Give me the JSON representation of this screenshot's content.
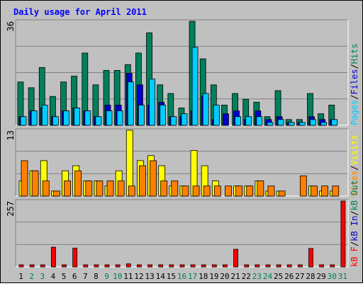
{
  "chart_data": {
    "title": "Daily usage for April 2011",
    "type": "bar",
    "days": [
      "1",
      "2",
      "3",
      "4",
      "5",
      "6",
      "7",
      "8",
      "9",
      "10",
      "11",
      "12",
      "13",
      "14",
      "15",
      "16",
      "17",
      "18",
      "19",
      "20",
      "21",
      "22",
      "23",
      "24",
      "25",
      "26",
      "27",
      "28",
      "29",
      "30",
      "31"
    ],
    "weekend_days": [
      "2",
      "3",
      "9",
      "10",
      "16",
      "17",
      "23",
      "24",
      "30",
      "31"
    ],
    "panels": [
      {
        "id": "hits",
        "max_label": "36",
        "ylim": [
          0,
          36
        ],
        "legend": [
          {
            "text": "Pages",
            "color": "#00ccff"
          },
          {
            "text": "/",
            "color": "#000000"
          },
          {
            "text": "Files",
            "color": "#0000cc"
          },
          {
            "text": "/",
            "color": "#000000"
          },
          {
            "text": "Hits",
            "color": "#00805c"
          }
        ],
        "series": [
          {
            "name": "Hits",
            "color": "#00805c",
            "values": [
              15,
              13,
              20,
              10,
              15,
              17,
              25,
              14,
              19,
              19,
              21,
              25,
              32,
              14,
              11,
              6,
              36,
              23,
              14,
              7,
              11,
              9,
              8,
              3,
              12,
              2,
              2,
              11,
              4,
              7,
              0
            ]
          },
          {
            "name": "Files",
            "color": "#0000cc",
            "values": [
              3,
              5,
              6,
              3,
              5,
              6,
              5,
              3,
              7,
              7,
              18,
              14,
              7,
              8,
              3,
              3,
              5,
              10,
              2,
              4,
              5,
              2,
              5,
              2,
              3,
              1,
              1,
              3,
              2,
              2,
              0
            ]
          },
          {
            "name": "Pages",
            "color": "#00ccff",
            "values": [
              3,
              5,
              7,
              3,
              5,
              6,
              5,
              3,
              5,
              5,
              15,
              7,
              16,
              7,
              3,
              4,
              27,
              11,
              7,
              0,
              3,
              3,
              3,
              1,
              2,
              1,
              1,
              2,
              1,
              2,
              0
            ]
          }
        ]
      },
      {
        "id": "visits",
        "max_label": "13",
        "ylim": [
          0,
          13
        ],
        "legend": [
          {
            "text": "Sites",
            "color": "#ff8000"
          },
          {
            "text": "/",
            "color": "#000000"
          },
          {
            "text": "Visits",
            "color": "#ffff00"
          }
        ],
        "series": [
          {
            "name": "Visits",
            "color": "#ffff00",
            "values": [
              3,
              5,
              7,
              1,
              5,
              6,
              3,
              3,
              2,
              5,
              13,
              7,
              8,
              6,
              2,
              2,
              9,
              6,
              3,
              0,
              2,
              2,
              3,
              1,
              1,
              0,
              0,
              2,
              1,
              1,
              0
            ]
          },
          {
            "name": "Sites",
            "color": "#ff8000",
            "values": [
              7,
              5,
              3,
              1,
              3,
              5,
              3,
              3,
              3,
              3,
              2,
              6,
              7,
              3,
              3,
              2,
              2,
              2,
              2,
              2,
              2,
              2,
              3,
              2,
              1,
              0,
              4,
              2,
              2,
              2,
              0
            ]
          }
        ]
      },
      {
        "id": "kbytes",
        "max_label": "257",
        "ylim": [
          0,
          257
        ],
        "legend": [
          {
            "text": "kB F",
            "color": "#ff0000"
          },
          {
            "text": "/",
            "color": "#000000"
          },
          {
            "text": "kB In",
            "color": "#0000cc"
          },
          {
            "text": "/",
            "color": "#000000"
          },
          {
            "text": "kB Out",
            "color": "#00805c"
          }
        ],
        "series": [
          {
            "name": "kB F",
            "color": "#ff0000",
            "values": [
              6,
              6,
              6,
              77,
              6,
              73,
              6,
              4,
              6,
              4,
              12,
              6,
              4,
              4,
              4,
              4,
              6,
              4,
              4,
              4,
              69,
              4,
              4,
              4,
              4,
              4,
              4,
              72,
              4,
              4,
              257
            ]
          },
          {
            "name": "kB In",
            "color": "#0000cc",
            "values": [
              0,
              0,
              0,
              0,
              0,
              0,
              0,
              0,
              0,
              0,
              0,
              0,
              0,
              0,
              0,
              0,
              0,
              0,
              0,
              0,
              0,
              0,
              0,
              0,
              0,
              0,
              0,
              0,
              0,
              0,
              0
            ]
          },
          {
            "name": "kB Out",
            "color": "#00805c",
            "values": [
              0,
              0,
              0,
              0,
              0,
              0,
              0,
              0,
              0,
              0,
              0,
              0,
              0,
              0,
              0,
              0,
              0,
              0,
              0,
              0,
              0,
              0,
              0,
              0,
              0,
              0,
              0,
              0,
              0,
              0,
              0
            ]
          }
        ]
      }
    ]
  }
}
